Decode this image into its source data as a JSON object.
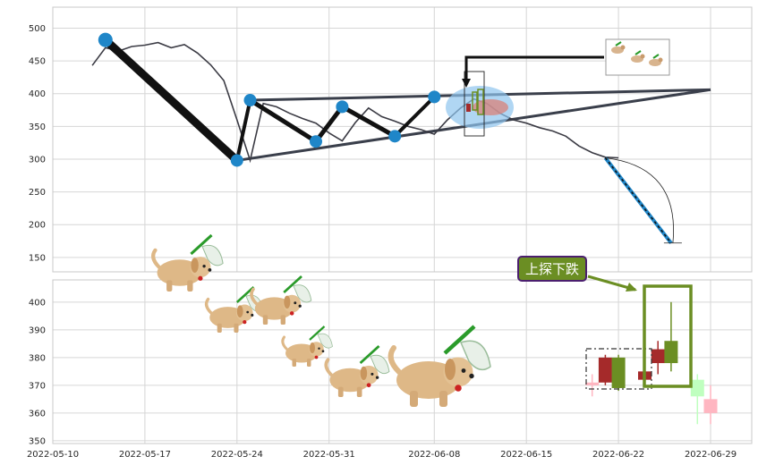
{
  "chart_data": [
    {
      "type": "line",
      "ylim": [
        128,
        532
      ],
      "yticks": [
        150,
        200,
        250,
        300,
        350,
        400,
        450,
        500
      ],
      "grid": true,
      "price_series": {
        "x": [
          "2022-05-13",
          "2022-05-14",
          "2022-05-15",
          "2022-05-16",
          "2022-05-17",
          "2022-05-18",
          "2022-05-19",
          "2022-05-20",
          "2022-05-21",
          "2022-05-22",
          "2022-05-23",
          "2022-05-24",
          "2022-05-25",
          "2022-05-26",
          "2022-05-27",
          "2022-05-28",
          "2022-05-29",
          "2022-05-30",
          "2022-05-31",
          "2022-06-01",
          "2022-06-02",
          "2022-06-03",
          "2022-06-04",
          "2022-06-05",
          "2022-06-06",
          "2022-06-07",
          "2022-06-08",
          "2022-06-09",
          "2022-06-10",
          "2022-06-11",
          "2022-06-12",
          "2022-06-13",
          "2022-06-14",
          "2022-06-15",
          "2022-06-16",
          "2022-06-17",
          "2022-06-18",
          "2022-06-19",
          "2022-06-20",
          "2022-06-21",
          "2022-06-22"
        ],
        "y": [
          443,
          470,
          465,
          472,
          474,
          478,
          470,
          475,
          462,
          444,
          420,
          360,
          298,
          385,
          380,
          370,
          362,
          355,
          340,
          328,
          356,
          378,
          365,
          358,
          350,
          345,
          338,
          360,
          378,
          392,
          385,
          370,
          360,
          355,
          348,
          343,
          335,
          320,
          310,
          303,
          302
        ]
      },
      "zigzag": {
        "x": [
          "2022-05-14",
          "2022-05-24",
          "2022-05-25",
          "2022-05-30",
          "2022-06-01",
          "2022-06-05",
          "2022-06-08"
        ],
        "y": [
          482,
          298,
          390,
          327,
          380,
          335,
          395
        ]
      },
      "triangle": {
        "upper": [
          [
            "2022-05-25",
            390
          ],
          [
            "2022-06-29",
            406
          ]
        ],
        "lower": [
          [
            "2022-05-24",
            298
          ],
          [
            "2022-06-29",
            406
          ]
        ]
      },
      "projection": [
        [
          "2022-06-21",
          302
        ],
        [
          "2022-06-26",
          172
        ]
      ]
    },
    {
      "type": "candlestick",
      "ylim": [
        349,
        408
      ],
      "yticks": [
        350,
        360,
        370,
        380,
        390,
        400
      ],
      "xticks": [
        "2022-05-10",
        "2022-05-17",
        "2022-05-24",
        "2022-05-31",
        "2022-06-08",
        "2022-06-15",
        "2022-06-22",
        "2022-06-29"
      ],
      "candles": [
        {
          "x": "2022-06-20",
          "open": 370,
          "close": 371,
          "high": 374,
          "low": 366,
          "color": "#ffb6c1"
        },
        {
          "x": "2022-06-21",
          "open": 380,
          "close": 371,
          "high": 381,
          "low": 370,
          "color": "#a52a2a"
        },
        {
          "x": "2022-06-22",
          "open": 369,
          "close": 380,
          "high": 381,
          "low": 368,
          "color": "#6b8e23"
        },
        {
          "x": "2022-06-24",
          "open": 375,
          "close": 372,
          "high": 379,
          "low": 370,
          "color": "#a52a2a"
        },
        {
          "x": "2022-06-25",
          "open": 383,
          "close": 378,
          "high": 386,
          "low": 374,
          "color": "#a52a2a"
        },
        {
          "x": "2022-06-26",
          "open": 378,
          "close": 386,
          "high": 400,
          "low": 375,
          "color": "#6b8e23"
        },
        {
          "x": "2022-06-28",
          "open": 372,
          "close": 366,
          "high": 374,
          "low": 356,
          "color": "#bfffbf"
        },
        {
          "x": "2022-06-29",
          "open": 365,
          "close": 360,
          "high": 370,
          "low": 356,
          "color": "#ffb6c1"
        }
      ],
      "annotation": "上探下跌"
    }
  ],
  "colors": {
    "price_line": "#3b3b44",
    "marker": "#1f86c8",
    "triangle": "#3a3f4b",
    "annotation_box": "#6b8e23",
    "annotation_border": "#4b1f6f",
    "highlight_box": "#6b8e23"
  }
}
